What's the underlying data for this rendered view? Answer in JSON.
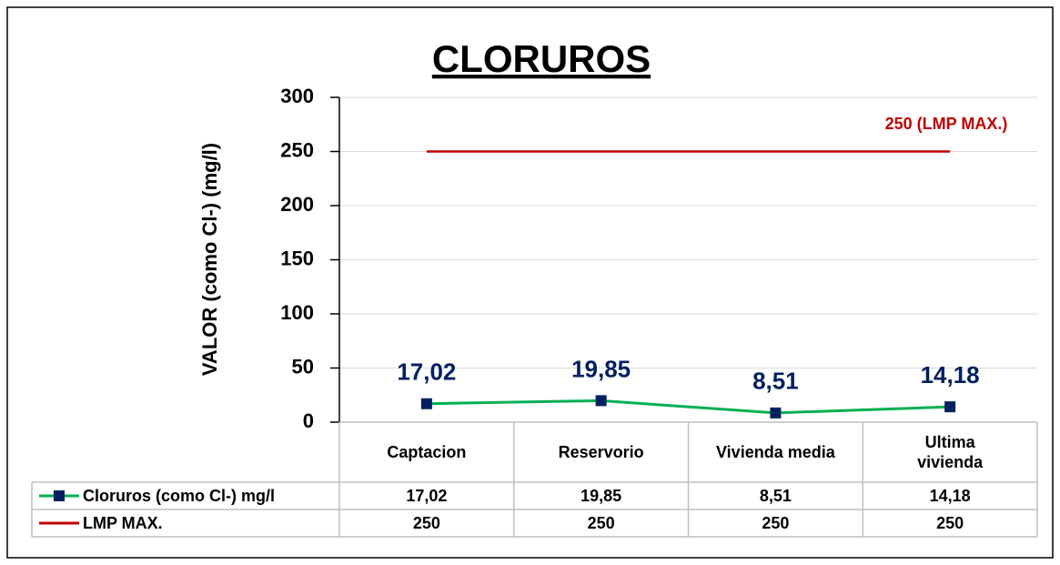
{
  "chart_data": {
    "type": "line",
    "title": "CLORUROS",
    "y_label": "VALOR (como Cl-) (mg/l)",
    "categories": [
      "Captacion",
      "Reservorio",
      "Vivienda media",
      "Ultima vivienda"
    ],
    "series": [
      {
        "name": "Cloruros (como Cl-) mg/l",
        "color": "#00b050",
        "marker_color": "#002060",
        "values": [
          17.02,
          19.85,
          8.51,
          14.18
        ],
        "value_labels": [
          "17,02",
          "19,85",
          "8,51",
          "14,18"
        ]
      },
      {
        "name": "LMP MAX.",
        "color": "#c00000",
        "values": [
          250,
          250,
          250,
          250
        ]
      }
    ],
    "annotation": "250 (LMP MAX.)",
    "ylim": [
      0,
      300
    ],
    "yticks": [
      0,
      50,
      100,
      150,
      200,
      250,
      300
    ],
    "grid": true
  }
}
